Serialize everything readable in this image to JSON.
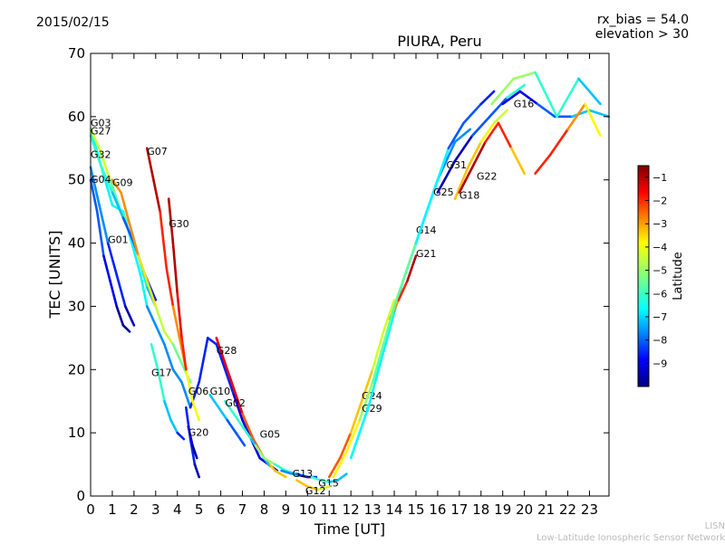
{
  "header": {
    "date": "2015/02/15",
    "rx_bias": "rx_bias = 54.0",
    "elevation": "elevation > 30"
  },
  "footer": {
    "line1": "LISN",
    "line2": "Low-Latitude Ionospheric Sensor Network"
  },
  "chart_data": {
    "type": "scatter",
    "title": "PIURA, Peru",
    "xlabel": "Time [UT]",
    "ylabel": "TEC [UNITS]",
    "xlim": [
      0,
      23.9
    ],
    "ylim": [
      0,
      70
    ],
    "xticks": [
      0,
      1,
      2,
      3,
      4,
      5,
      6,
      7,
      8,
      9,
      10,
      11,
      12,
      13,
      14,
      15,
      16,
      17,
      18,
      19,
      20,
      21,
      22,
      23
    ],
    "yticks": [
      0,
      10,
      20,
      30,
      40,
      50,
      60,
      70
    ],
    "grid": false,
    "colorbar": {
      "label": "Latitude",
      "range": [
        -10,
        -0.5
      ],
      "ticks": [
        -1,
        -2,
        -3,
        -4,
        -5,
        -6,
        -7,
        -8,
        -9
      ],
      "colormap": [
        "#00007f",
        "#0000ff",
        "#007fff",
        "#00ffff",
        "#7fff7f",
        "#ffff00",
        "#ff7f00",
        "#ff0000",
        "#7f0000"
      ]
    },
    "series": [
      {
        "name": "G03",
        "label_at": [
          0.0,
          58.5
        ],
        "lat": [
          -6.5,
          -7.5,
          -8.5,
          -9.0
        ],
        "x": [
          0.0,
          0.5,
          1.0,
          1.5,
          1.9,
          2.3,
          2.6,
          3.0,
          3.4,
          3.8,
          4.2,
          4.6,
          5.0,
          5.4,
          5.8,
          6.2,
          6.6,
          7.0,
          7.4,
          7.8,
          8.2,
          8.6
        ],
        "y": [
          58,
          52,
          46,
          45,
          40,
          35,
          30,
          27,
          24,
          20,
          18,
          14,
          18,
          25,
          24,
          20,
          16,
          12,
          9,
          6,
          5,
          4
        ]
      },
      {
        "name": "G27",
        "label_at": [
          0.0,
          57.2
        ],
        "lat": [
          -4.5,
          -5.5,
          -6.5,
          -7.0
        ],
        "x": [
          0.0,
          0.4,
          0.9,
          1.4,
          1.8,
          2.2,
          2.6,
          3.0
        ],
        "y": [
          58,
          55,
          50,
          45,
          43,
          38,
          33,
          30
        ]
      },
      {
        "name": "G32",
        "label_at": [
          0.0,
          53.5
        ],
        "lat": [
          -6.0,
          -7.0,
          -8.0,
          -8.5
        ],
        "x": [
          0.0,
          0.5,
          1.0,
          1.5,
          2.0,
          2.5,
          3.0
        ],
        "y": [
          57,
          52,
          48,
          44,
          40,
          35,
          31
        ]
      },
      {
        "name": "G04",
        "label_at": [
          0.0,
          49.5
        ],
        "lat": [
          -7.5,
          -8.5,
          -9.5
        ],
        "x": [
          0.0,
          0.4,
          0.8,
          1.2,
          1.6,
          2.0
        ],
        "y": [
          52,
          46,
          40,
          35,
          30,
          27
        ]
      },
      {
        "name": "G09",
        "label_at": [
          1.0,
          49.0
        ],
        "lat": [
          -3.0,
          -3.8,
          -4.6,
          -5.4
        ],
        "x": [
          1.0,
          1.4,
          1.8,
          2.2,
          2.6,
          3.0,
          3.4,
          3.8,
          4.2,
          4.6
        ],
        "y": [
          50,
          48,
          43,
          38,
          34,
          30,
          26,
          24,
          21,
          18
        ]
      },
      {
        "name": "G01",
        "label_at": [
          0.8,
          40.0
        ],
        "lat": [
          -8.0,
          -9.0,
          -9.8
        ],
        "x": [
          0.0,
          0.3,
          0.6,
          0.9,
          1.2,
          1.5,
          1.8
        ],
        "y": [
          50,
          45,
          38,
          34,
          30,
          27,
          26
        ]
      },
      {
        "name": "G07",
        "label_at": [
          2.6,
          54.0
        ],
        "lat": [
          -1.0,
          -2.0,
          -3.0,
          -4.0
        ],
        "x": [
          2.6,
          2.9,
          3.2,
          3.5,
          3.8,
          4.1,
          4.4,
          4.7,
          5.0
        ],
        "y": [
          55,
          50,
          45,
          36,
          30,
          25,
          20,
          15,
          12
        ]
      },
      {
        "name": "G30",
        "label_at": [
          3.6,
          42.5
        ],
        "lat": [
          -1.0,
          -1.5,
          -2.0
        ],
        "x": [
          3.6,
          3.8,
          4.0,
          4.2,
          4.4
        ],
        "y": [
          47,
          40,
          32,
          25,
          20
        ]
      },
      {
        "name": "G28",
        "label_at": [
          5.8,
          22.5
        ],
        "lat": [
          -1.5,
          -2.5,
          -3.5
        ],
        "x": [
          5.8,
          6.2,
          6.6,
          7.0,
          7.5,
          8.0,
          8.5,
          9.0
        ],
        "y": [
          25,
          21,
          17,
          13,
          9,
          6,
          4,
          3
        ]
      },
      {
        "name": "G17",
        "label_at": [
          2.8,
          19.0
        ],
        "lat": [
          -6.0,
          -7.0,
          -8.5
        ],
        "x": [
          2.8,
          3.1,
          3.4,
          3.7,
          4.0,
          4.3
        ],
        "y": [
          24,
          20,
          15,
          12,
          10,
          9
        ]
      },
      {
        "name": "G06",
        "label_at": [
          4.5,
          16.0
        ],
        "lat": [
          -8.5,
          -9.5
        ],
        "x": [
          4.4,
          4.6,
          4.8,
          5.0
        ],
        "y": [
          14,
          9,
          5,
          3
        ]
      },
      {
        "name": "G10",
        "label_at": [
          5.5,
          16.0
        ],
        "lat": [
          -7.0,
          -8.0
        ],
        "x": [
          5.5,
          5.9,
          6.3,
          6.7,
          7.1
        ],
        "y": [
          16,
          14,
          12,
          10,
          8
        ]
      },
      {
        "name": "G02",
        "label_at": [
          6.2,
          14.2
        ],
        "lat": [
          -6.0,
          -7.0
        ],
        "x": [
          6.2,
          6.6,
          7.0,
          7.4,
          7.8,
          8.2
        ],
        "y": [
          15,
          13,
          11,
          9,
          7,
          5
        ]
      },
      {
        "name": "G20",
        "label_at": [
          4.5,
          9.5
        ],
        "lat": [
          -9.0,
          -9.8
        ],
        "x": [
          4.5,
          4.7,
          4.9
        ],
        "y": [
          11,
          8,
          6
        ]
      },
      {
        "name": "G05",
        "label_at": [
          7.8,
          9.2
        ],
        "lat": [
          -5.0,
          -6.0,
          -7.0
        ],
        "x": [
          7.6,
          8.0,
          8.5,
          9.0,
          9.5,
          10.0
        ],
        "y": [
          8,
          6,
          5,
          4,
          3.5,
          3
        ]
      },
      {
        "name": "G13",
        "label_at": [
          9.3,
          3.0
        ],
        "lat": [
          -7.5,
          -8.5
        ],
        "x": [
          8.8,
          9.2,
          9.6,
          10.0,
          10.4
        ],
        "y": [
          4,
          3.6,
          3.3,
          3.0,
          3.0
        ]
      },
      {
        "name": "G15",
        "label_at": [
          10.5,
          1.5
        ],
        "lat": [
          -6.0,
          -7.0
        ],
        "x": [
          10.2,
          10.6,
          11.0,
          11.4,
          11.8
        ],
        "y": [
          3,
          2.5,
          2.2,
          2.5,
          3.5
        ]
      },
      {
        "name": "G12",
        "label_at": [
          9.9,
          0.3
        ],
        "lat": [
          -3.5,
          -4.5
        ],
        "x": [
          9.5,
          10.0,
          10.5,
          11.0
        ],
        "y": [
          2.5,
          1.5,
          1.0,
          1.5
        ]
      },
      {
        "name": "G24",
        "label_at": [
          12.5,
          15.3
        ],
        "lat": [
          -2.5,
          -3.5,
          -4.5
        ],
        "x": [
          11.0,
          11.5,
          12.0,
          12.5,
          13.0,
          13.5,
          14.0
        ],
        "y": [
          3,
          6,
          10,
          15,
          20,
          26,
          31
        ]
      },
      {
        "name": "G29",
        "label_at": [
          12.5,
          13.3
        ],
        "lat": [
          -4.0,
          -5.0
        ],
        "x": [
          11.2,
          11.8,
          12.4,
          13.0,
          13.6
        ],
        "y": [
          3,
          7,
          12,
          18,
          24
        ]
      },
      {
        "name": "G14",
        "label_at": [
          15.0,
          41.5
        ],
        "lat": [
          -6.5,
          -7.0,
          -7.5
        ],
        "x": [
          12.0,
          12.8,
          13.6,
          14.4,
          15.2,
          16.0,
          16.8,
          17.5
        ],
        "y": [
          6,
          14,
          24,
          34,
          42,
          50,
          56,
          58
        ]
      },
      {
        "name": "G21",
        "label_at": [
          15.0,
          37.8
        ],
        "lat": [
          -3.0,
          -2.0,
          -1.0
        ],
        "x": [
          13.8,
          14.2,
          14.6,
          15.0
        ],
        "y": [
          28,
          31,
          34,
          38
        ]
      },
      {
        "name": "G25",
        "label_at": [
          15.8,
          47.5
        ],
        "lat": [
          -5.5,
          -6.5,
          -8.0,
          -8.5
        ],
        "x": [
          13.0,
          14.0,
          15.0,
          15.8,
          16.5,
          17.2,
          18.0,
          18.6
        ],
        "y": [
          18,
          30,
          40,
          48,
          55,
          59,
          62,
          64
        ]
      },
      {
        "name": "G31",
        "label_at": [
          16.4,
          51.8
        ],
        "lat": [
          -9.5,
          -8.0,
          -6.0
        ],
        "x": [
          16.0,
          16.8,
          17.6,
          18.4,
          19.2,
          20.0
        ],
        "y": [
          48,
          53,
          57,
          60,
          63,
          65
        ]
      },
      {
        "name": "G22",
        "label_at": [
          17.8,
          50.0
        ],
        "lat": [
          -3.5,
          -4.0,
          -4.5
        ],
        "x": [
          16.8,
          17.4,
          18.0,
          18.6,
          19.2
        ],
        "y": [
          47,
          52,
          56,
          59,
          61
        ]
      },
      {
        "name": "G18",
        "label_at": [
          17.0,
          47.0
        ],
        "lat": [
          -1.0,
          -2.0,
          -3.5
        ],
        "x": [
          17.0,
          17.6,
          18.2,
          18.8,
          19.4,
          20.0
        ],
        "y": [
          48,
          52,
          56,
          59,
          55,
          51
        ]
      },
      {
        "name": "G16",
        "label_at": [
          19.5,
          61.5
        ],
        "lat": [
          -9.0,
          -8.0,
          -7.0
        ],
        "x": [
          19.0,
          19.8,
          20.6,
          21.4,
          22.2,
          23.0,
          23.9
        ],
        "y": [
          62,
          64,
          62,
          60,
          60,
          61,
          60
        ]
      },
      {
        "name": "",
        "label_at": null,
        "lat": [
          -5.0,
          -6.0,
          -7.0
        ],
        "x": [
          18.5,
          19.5,
          20.5,
          21.5,
          22.5,
          23.5
        ],
        "y": [
          62,
          66,
          67,
          60,
          66,
          62
        ]
      },
      {
        "name": "",
        "label_at": null,
        "lat": [
          -2.0,
          -3.0,
          -4.0
        ],
        "x": [
          20.5,
          21.2,
          22.0,
          22.8,
          23.5
        ],
        "y": [
          51,
          54,
          58,
          62,
          57
        ]
      }
    ]
  }
}
